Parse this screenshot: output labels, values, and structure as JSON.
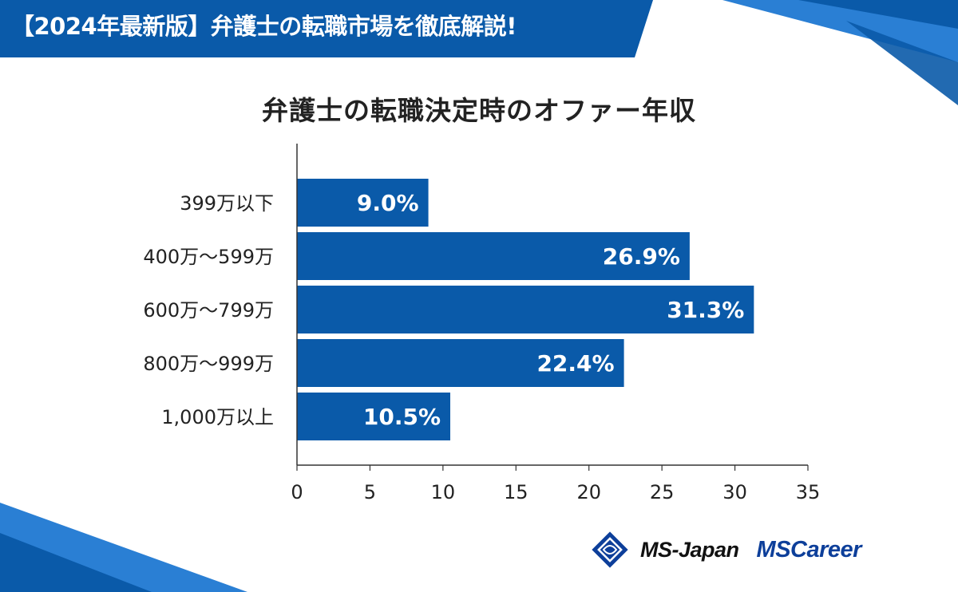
{
  "banner": {
    "title": "【2024年最新版】弁護士の転職市場を徹底解説!"
  },
  "chart_data": {
    "type": "bar",
    "orientation": "horizontal",
    "title": "弁護士の転職決定時のオファー年収",
    "categories": [
      "399万以下",
      "400万〜599万",
      "600万〜799万",
      "800万〜999万",
      "1,000万以上"
    ],
    "values": [
      9.0,
      26.9,
      31.3,
      22.4,
      10.5
    ],
    "value_labels": [
      "9.0%",
      "26.9%",
      "31.3%",
      "22.4%",
      "10.5%"
    ],
    "xlabel": "",
    "ylabel": "",
    "xlim": [
      0,
      35
    ],
    "xticks": [
      0,
      5,
      10,
      15,
      20,
      25,
      30,
      35
    ],
    "grid": false,
    "bar_color": "#0a5aa9"
  },
  "logos": {
    "brand1": "MS-Japan",
    "brand2": "MSCareer"
  },
  "colors": {
    "banner": "#0a5aa9",
    "banner_accent": "#1f7fd6",
    "text": "#222222"
  }
}
